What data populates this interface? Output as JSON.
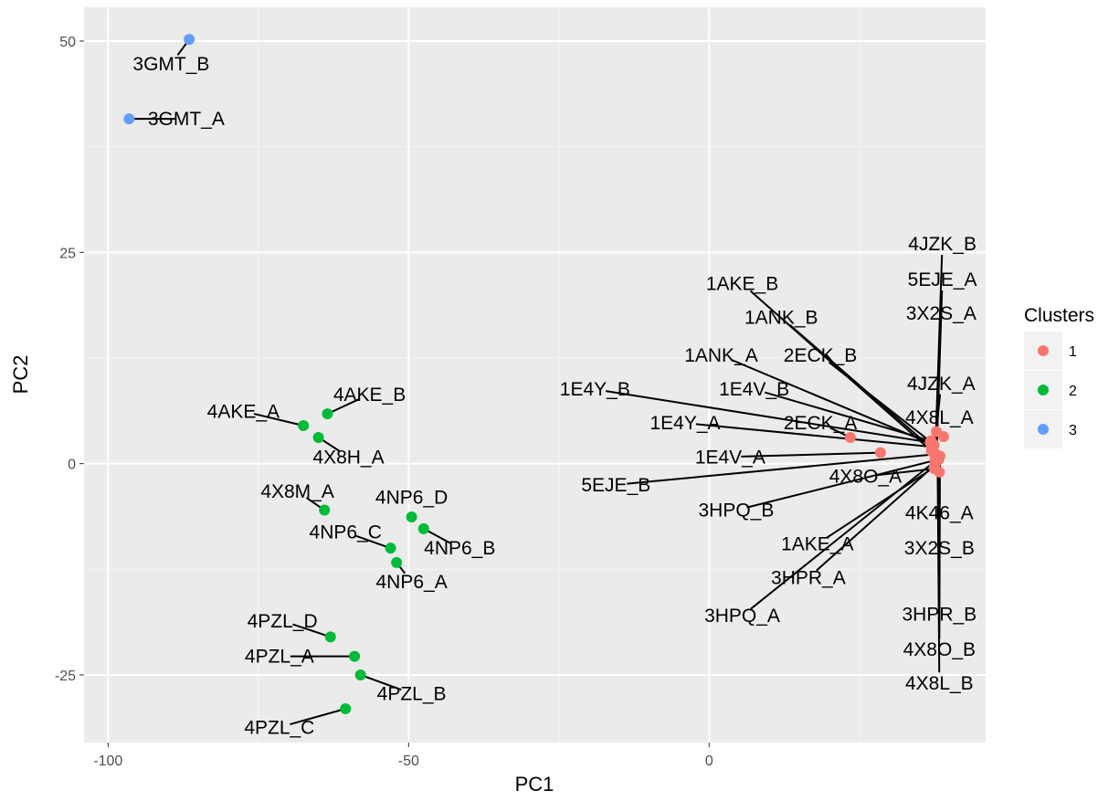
{
  "chart_data": {
    "type": "scatter",
    "xlabel": "PC1",
    "ylabel": "PC2",
    "xlim": [
      -104,
      46
    ],
    "ylim": [
      -33,
      54
    ],
    "x_ticks": [
      -100,
      -50,
      0
    ],
    "x_tick_labels": [
      "-100",
      "-50",
      "0"
    ],
    "y_ticks": [
      -25,
      0,
      25,
      50
    ],
    "y_tick_labels": [
      "-25",
      "0",
      "25",
      "50"
    ],
    "grid": true,
    "legend": {
      "title": "Clusters",
      "placement": "right",
      "entries": [
        {
          "label": "1",
          "color": "#F8766D"
        },
        {
          "label": "2",
          "color": "#00BA38"
        },
        {
          "label": "3",
          "color": "#619CFF"
        }
      ]
    },
    "colors": {
      "panel": "#EBEBEB",
      "grid_major": "#FFFFFF",
      "grid_minor": "#F5F5F5"
    },
    "series": [
      {
        "name": "1",
        "color": "#F8766D",
        "points": [
          {
            "id": "4JZK_B",
            "x": 37.6,
            "y": 0.8,
            "lx": 38.8,
            "ly": 26.0
          },
          {
            "id": "5EJE_A",
            "x": 37.8,
            "y": 0.2,
            "lx": 38.8,
            "ly": 21.8
          },
          {
            "id": "3X2S_A",
            "x": 37.6,
            "y": 1.2,
            "lx": 38.6,
            "ly": 17.8
          },
          {
            "id": "1AKE_B",
            "x": 37.0,
            "y": 1.5,
            "lx": 5.5,
            "ly": 21.3
          },
          {
            "id": "1ANK_B",
            "x": 37.1,
            "y": 1.8,
            "lx": 12.0,
            "ly": 17.3
          },
          {
            "id": "1ANK_A",
            "x": 37.4,
            "y": 2.2,
            "lx": 2.0,
            "ly": 12.8
          },
          {
            "id": "2ECK_B",
            "x": 37.2,
            "y": 2.4,
            "lx": 18.5,
            "ly": 12.8
          },
          {
            "id": "4JZK_A",
            "x": 37.8,
            "y": 3.8,
            "lx": 38.6,
            "ly": 9.5
          },
          {
            "id": "1E4Y_B",
            "x": 36.8,
            "y": 2.5,
            "lx": -19.0,
            "ly": 8.8
          },
          {
            "id": "1E4V_B",
            "x": 36.9,
            "y": 2.7,
            "lx": 7.5,
            "ly": 8.8
          },
          {
            "id": "4X8L_A",
            "x": 39.0,
            "y": 3.2,
            "lx": 38.3,
            "ly": 5.5
          },
          {
            "id": "1E4Y_A",
            "x": 37.0,
            "y": 2.0,
            "lx": -4.0,
            "ly": 4.8
          },
          {
            "id": "2ECK_A",
            "x": 23.5,
            "y": 3.1,
            "lx": 18.5,
            "ly": 4.8
          },
          {
            "id": "1E4V_A",
            "x": 28.5,
            "y": 1.3,
            "lx": 3.5,
            "ly": 0.8
          },
          {
            "id": "5EJE_B",
            "x": 37.5,
            "y": 1.1,
            "lx": -15.5,
            "ly": -2.5
          },
          {
            "id": "4X8O_A",
            "x": 37.5,
            "y": -0.6,
            "lx": 26.0,
            "ly": -1.5
          },
          {
            "id": "3HPQ_B",
            "x": 37.6,
            "y": 0.4,
            "lx": 4.5,
            "ly": -5.5
          },
          {
            "id": "4K46_A",
            "x": 38.3,
            "y": -1.0,
            "lx": 38.3,
            "ly": -5.8
          },
          {
            "id": "1AKE_A",
            "x": 37.5,
            "y": -0.4,
            "lx": 18.0,
            "ly": -9.5
          },
          {
            "id": "3X2S_B",
            "x": 38.0,
            "y": 0.6,
            "lx": 38.3,
            "ly": -10.0
          },
          {
            "id": "3HPR_A",
            "x": 37.5,
            "y": -0.2,
            "lx": 16.5,
            "ly": -13.5
          },
          {
            "id": "3HPQ_A",
            "x": 37.6,
            "y": 0.3,
            "lx": 5.5,
            "ly": -18.0
          },
          {
            "id": "3HPR_B",
            "x": 38.2,
            "y": 0.5,
            "lx": 38.3,
            "ly": -17.8
          },
          {
            "id": "4X8O_B",
            "x": 38.4,
            "y": 0.9,
            "lx": 38.3,
            "ly": -22.0
          },
          {
            "id": "4X8L_B",
            "x": 38.0,
            "y": 0.7,
            "lx": 38.3,
            "ly": -26.0
          }
        ]
      },
      {
        "name": "2",
        "color": "#00BA38",
        "points": [
          {
            "id": "4AKE_A",
            "x": -67.5,
            "y": 4.5,
            "lx": -77.5,
            "ly": 6.2
          },
          {
            "id": "4AKE_B",
            "x": -63.5,
            "y": 5.9,
            "lx": -56.5,
            "ly": 8.2
          },
          {
            "id": "4X8H_A",
            "x": -65.0,
            "y": 3.1,
            "lx": -60.0,
            "ly": 0.8
          },
          {
            "id": "4X8M_A",
            "x": -64.0,
            "y": -5.5,
            "lx": -68.5,
            "ly": -3.3
          },
          {
            "id": "4NP6_D",
            "x": -49.5,
            "y": -6.3,
            "lx": -49.5,
            "ly": -4.0
          },
          {
            "id": "4NP6_B",
            "x": -47.5,
            "y": -7.7,
            "lx": -41.5,
            "ly": -10.0
          },
          {
            "id": "4NP6_C",
            "x": -53.0,
            "y": -10.0,
            "lx": -60.5,
            "ly": -8.1
          },
          {
            "id": "4NP6_A",
            "x": -52.0,
            "y": -11.7,
            "lx": -49.5,
            "ly": -14.0
          },
          {
            "id": "4PZL_D",
            "x": -63.0,
            "y": -20.5,
            "lx": -71.0,
            "ly": -18.6
          },
          {
            "id": "4PZL_A",
            "x": -59.0,
            "y": -22.8,
            "lx": -71.5,
            "ly": -22.8
          },
          {
            "id": "4PZL_B",
            "x": -58.0,
            "y": -25.0,
            "lx": -49.5,
            "ly": -27.2
          },
          {
            "id": "4PZL_C",
            "x": -60.5,
            "y": -29.0,
            "lx": -71.5,
            "ly": -31.2
          }
        ]
      },
      {
        "name": "3",
        "color": "#619CFF",
        "points": [
          {
            "id": "3GMT_B",
            "x": -86.5,
            "y": 50.2,
            "lx": -89.5,
            "ly": 47.3
          },
          {
            "id": "3GMT_A",
            "x": -96.5,
            "y": 40.8,
            "lx": -87.0,
            "ly": 40.8
          }
        ]
      }
    ]
  }
}
